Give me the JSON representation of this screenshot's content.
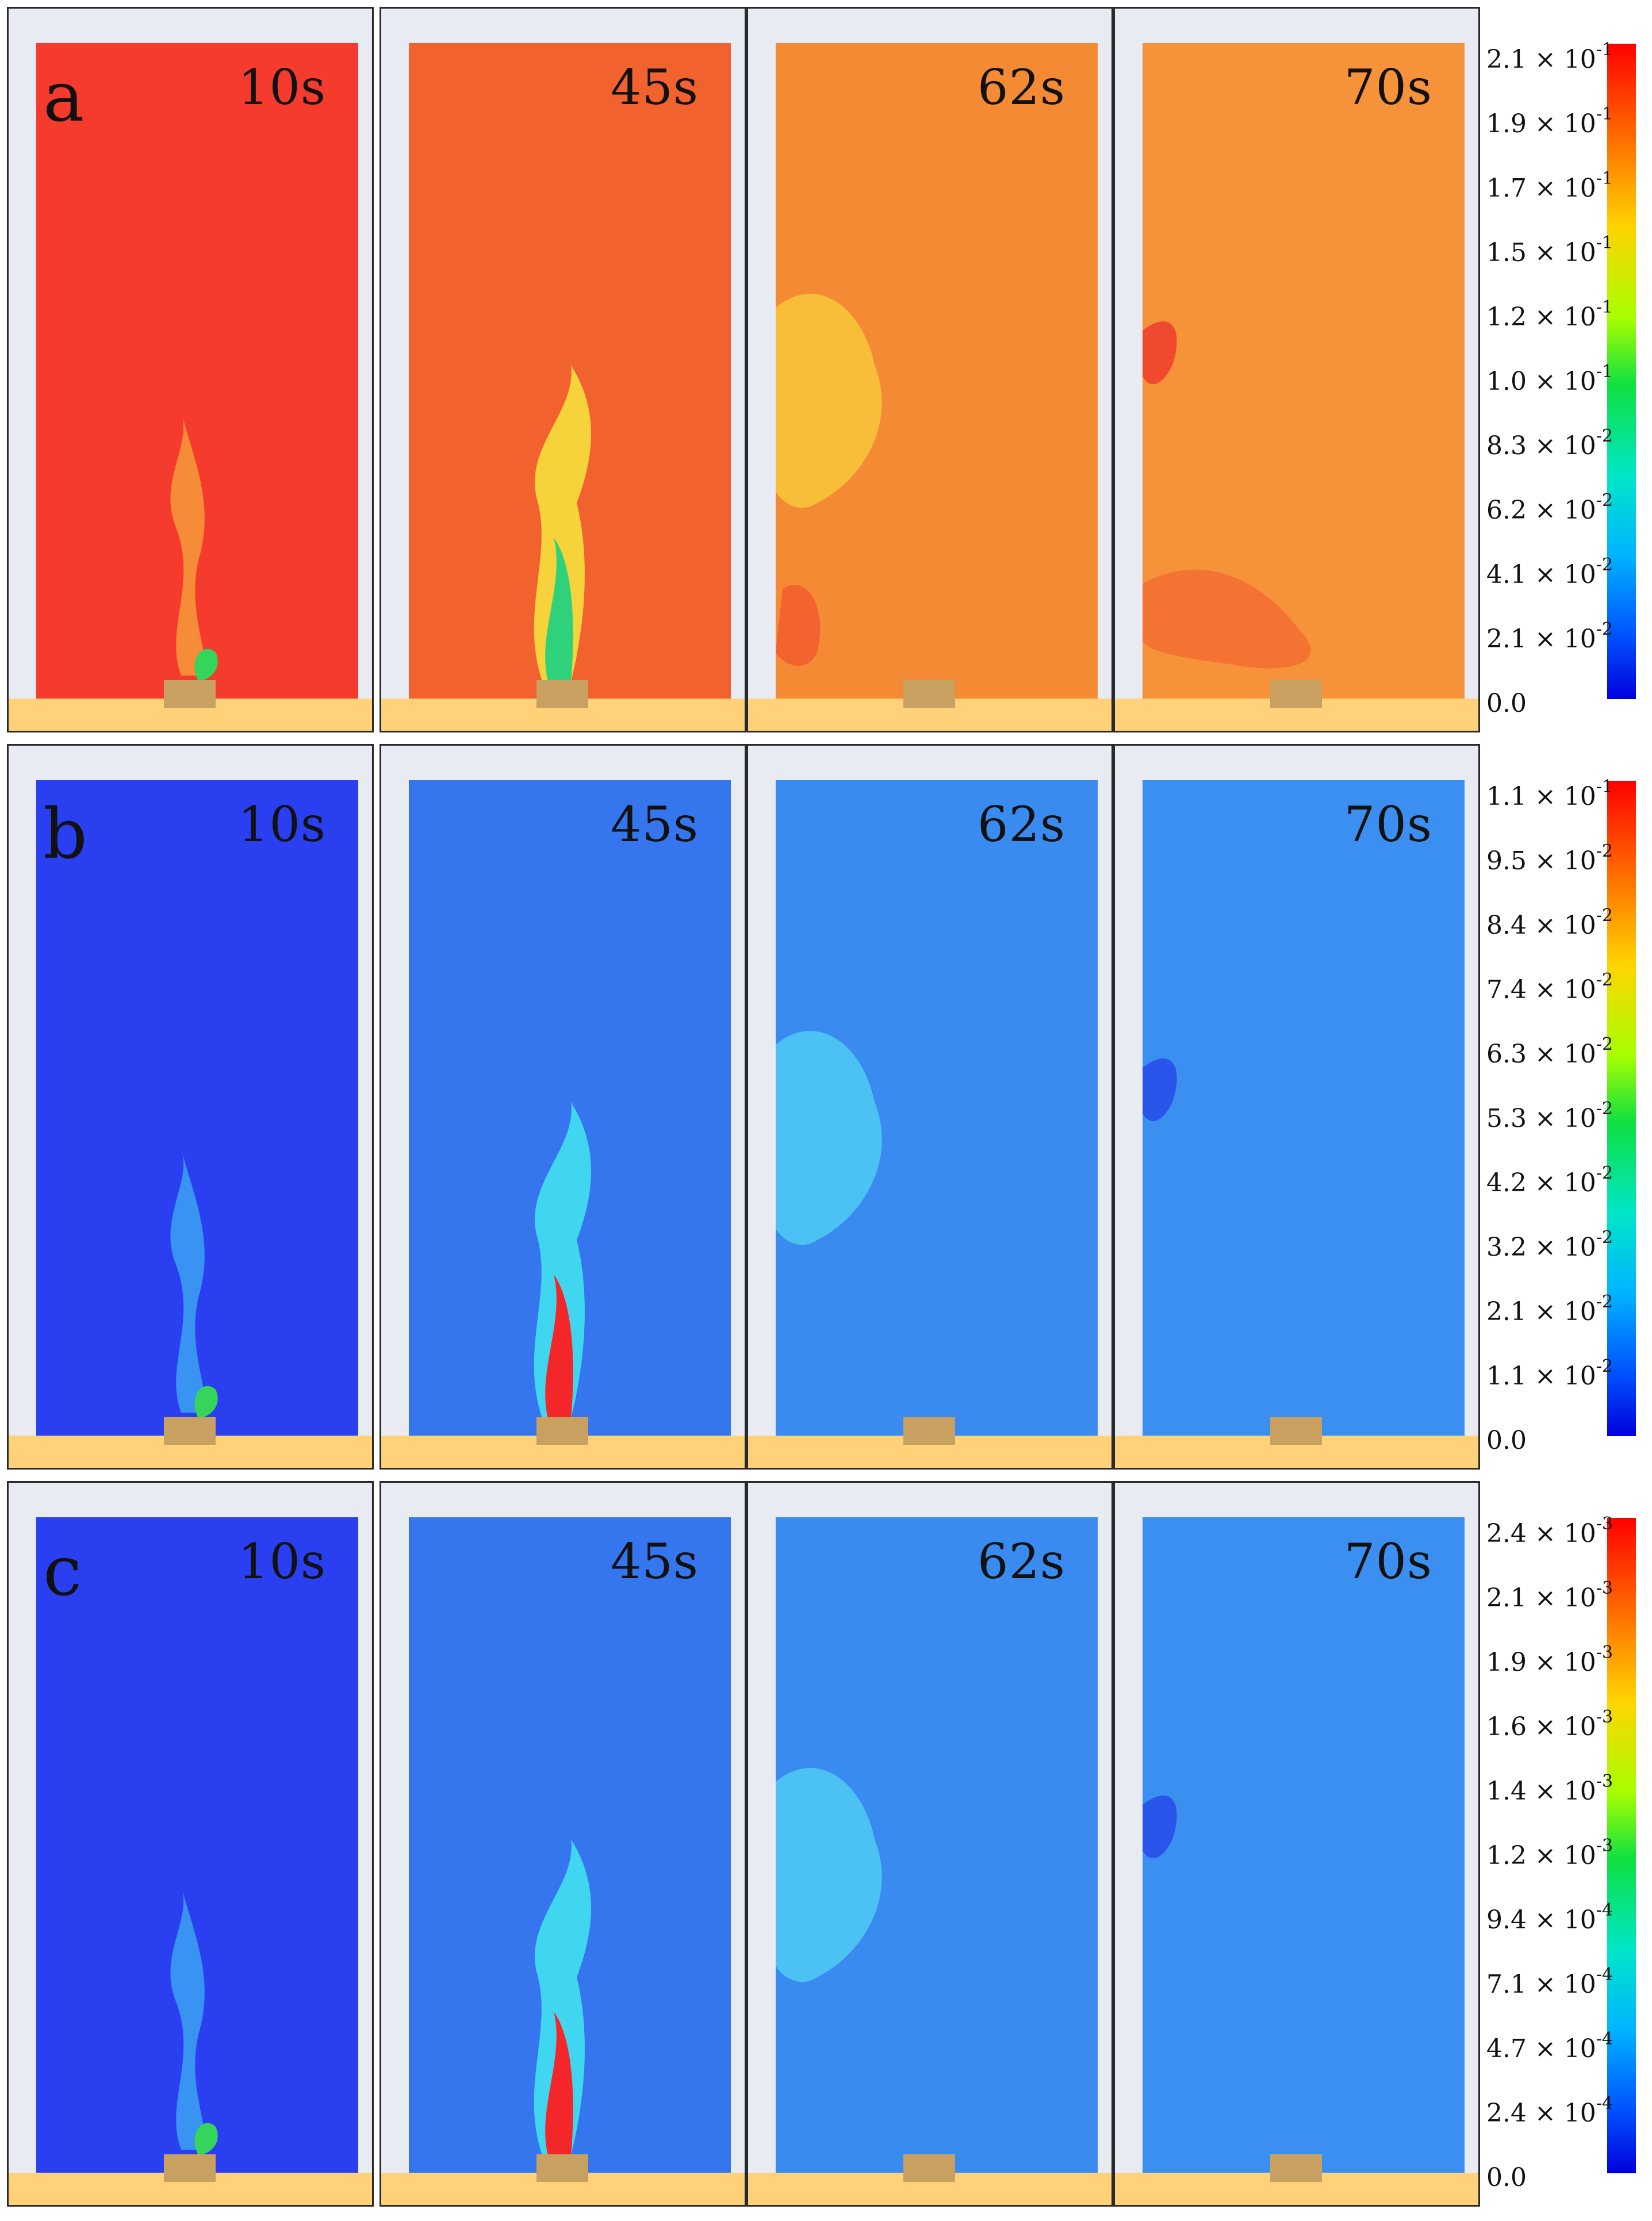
{
  "rows": [
    {
      "letter": "a",
      "times": [
        "10s",
        "45s",
        "62s",
        "70s"
      ],
      "scale": [
        {
          "mant": "2.1 × 10",
          "exp": "-1"
        },
        {
          "mant": "1.9 × 10",
          "exp": "-1"
        },
        {
          "mant": "1.7 × 10",
          "exp": "-1"
        },
        {
          "mant": "1.5 × 10",
          "exp": "-1"
        },
        {
          "mant": "1.2 × 10",
          "exp": "-1"
        },
        {
          "mant": "1.0 × 10",
          "exp": "-1"
        },
        {
          "mant": "8.3 × 10",
          "exp": "-2"
        },
        {
          "mant": "6.2 × 10",
          "exp": "-2"
        },
        {
          "mant": "4.1 × 10",
          "exp": "-2"
        },
        {
          "mant": "2.1 × 10",
          "exp": "-2"
        },
        {
          "mant": "0.0",
          "exp": ""
        }
      ]
    },
    {
      "letter": "b",
      "times": [
        "10s",
        "45s",
        "62s",
        "70s"
      ],
      "scale": [
        {
          "mant": "1.1 × 10",
          "exp": "-1"
        },
        {
          "mant": "9.5 × 10",
          "exp": "-2"
        },
        {
          "mant": "8.4 × 10",
          "exp": "-2"
        },
        {
          "mant": "7.4 × 10",
          "exp": "-2"
        },
        {
          "mant": "6.3 × 10",
          "exp": "-2"
        },
        {
          "mant": "5.3 × 10",
          "exp": "-2"
        },
        {
          "mant": "4.2 × 10",
          "exp": "-2"
        },
        {
          "mant": "3.2 × 10",
          "exp": "-2"
        },
        {
          "mant": "2.1 × 10",
          "exp": "-2"
        },
        {
          "mant": "1.1 × 10",
          "exp": "-2"
        },
        {
          "mant": "0.0",
          "exp": ""
        }
      ]
    },
    {
      "letter": "c",
      "times": [
        "10s",
        "45s",
        "62s",
        "70s"
      ],
      "scale": [
        {
          "mant": "2.4 × 10",
          "exp": "-3"
        },
        {
          "mant": "2.1 × 10",
          "exp": "-3"
        },
        {
          "mant": "1.9 × 10",
          "exp": "-3"
        },
        {
          "mant": "1.6 × 10",
          "exp": "-3"
        },
        {
          "mant": "1.4 × 10",
          "exp": "-3"
        },
        {
          "mant": "1.2 × 10",
          "exp": "-3"
        },
        {
          "mant": "9.4 × 10",
          "exp": "-4"
        },
        {
          "mant": "7.1 × 10",
          "exp": "-4"
        },
        {
          "mant": "4.7 × 10",
          "exp": "-4"
        },
        {
          "mant": "2.4 × 10",
          "exp": "-4"
        },
        {
          "mant": "0.0",
          "exp": ""
        }
      ]
    }
  ],
  "colors": {
    "a_bg": [
      "#f53a2e",
      "#f2622f",
      "#f58a34",
      "#f5923a"
    ],
    "b_bg": [
      "#2a3ff0",
      "#3576ee",
      "#3a8bf0",
      "#3a8ff0"
    ],
    "c_bg": [
      "#2a3ff0",
      "#3576ee",
      "#3a8bf0",
      "#3a8ff0"
    ],
    "floor": "#ffd27a",
    "burner": "#c8a060"
  }
}
